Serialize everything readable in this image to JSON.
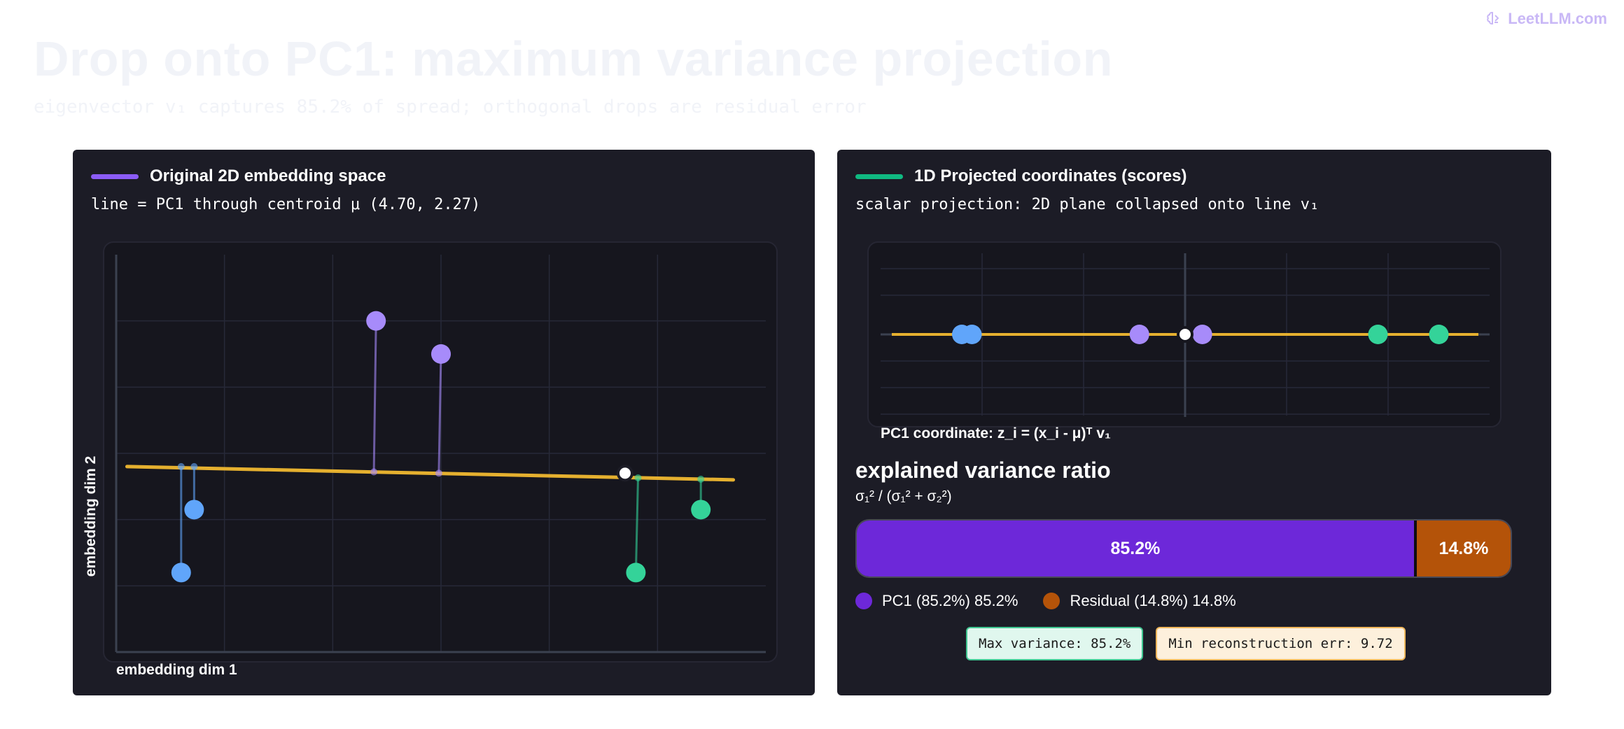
{
  "brand": {
    "name": "LeetLLM.com",
    "icon": "brain-icon"
  },
  "page": {
    "title": "Drop onto PC1: maximum variance projection",
    "subtitle": "eigenvector v₁ captures 85.2% of spread; orthogonal drops are residual error"
  },
  "colors": {
    "purple": "#a78bfa",
    "blue": "#60a5fa",
    "green": "#34d399",
    "pc_line": "#e5b02f",
    "pc1_bar": "#6d28d9",
    "residual_bar": "#b45309",
    "accent_purple": "#7c3aed",
    "accent_green": "#10b981"
  },
  "left_panel": {
    "title": "Original 2D embedding space",
    "formula": "line = PC1 through centroid μ (4.70, 2.27)"
  },
  "right_panel": {
    "title": "1D Projected coordinates (scores)",
    "formula": "scalar projection: 2D plane collapsed onto line v₁"
  },
  "variance": {
    "title": "explained variance ratio",
    "formula": "σ₁² / (σ₁² + σ₂²)",
    "pc1_label": "85.2%",
    "residual_label": "14.8%",
    "legend_pc1": "PC1 (85.2%) 85.2%",
    "legend_residual": "Residual (14.8%) 14.8%",
    "badge_variance": "Max variance: 85.2%",
    "badge_recon": "Min reconstruction err: 9.72"
  },
  "chart_data": [
    {
      "type": "scatter",
      "title": "Original 2D embedding space",
      "xlabel": "embedding dim 1",
      "ylabel": "embedding dim 2",
      "xlim": [
        0,
        6
      ],
      "ylim": [
        0,
        6
      ],
      "grid": true,
      "centroid": {
        "x": 4.7,
        "y": 2.27
      },
      "pc_line": {
        "x": [
          0.1,
          5.7
        ],
        "y": [
          2.8,
          2.6
        ]
      },
      "points": [
        {
          "x": 0.6,
          "y": 1.2,
          "proj_x": 0.6,
          "proj_y": 2.8,
          "group": "blue"
        },
        {
          "x": 0.72,
          "y": 2.15,
          "proj_x": 0.72,
          "proj_y": 2.8,
          "group": "blue"
        },
        {
          "x": 2.4,
          "y": 5.0,
          "proj_x": 2.38,
          "proj_y": 2.72,
          "group": "purple"
        },
        {
          "x": 3.0,
          "y": 4.5,
          "proj_x": 2.98,
          "proj_y": 2.7,
          "group": "purple"
        },
        {
          "x": 4.8,
          "y": 1.2,
          "proj_x": 4.82,
          "proj_y": 2.63,
          "group": "green"
        },
        {
          "x": 5.4,
          "y": 2.15,
          "proj_x": 5.4,
          "proj_y": 2.61,
          "group": "green"
        }
      ]
    },
    {
      "type": "scatter",
      "title": "1D Projected coordinates (scores)",
      "xlabel": "PC1 coordinate: z_i = (x_i - μ)ᵀ v₁",
      "xlim": [
        -3,
        3
      ],
      "grid": true,
      "points": [
        {
          "x": -2.2,
          "group": "blue"
        },
        {
          "x": -2.1,
          "group": "blue"
        },
        {
          "x": -0.45,
          "group": "purple"
        },
        {
          "x": 0.17,
          "group": "purple"
        },
        {
          "x": 1.9,
          "group": "green"
        },
        {
          "x": 2.5,
          "group": "green"
        }
      ],
      "centroid": {
        "x": 0.0
      }
    },
    {
      "type": "bar",
      "title": "explained variance ratio",
      "categories": [
        "PC1 (85.2%)",
        "Residual (14.8%)"
      ],
      "values": [
        85.2,
        14.8
      ]
    }
  ]
}
